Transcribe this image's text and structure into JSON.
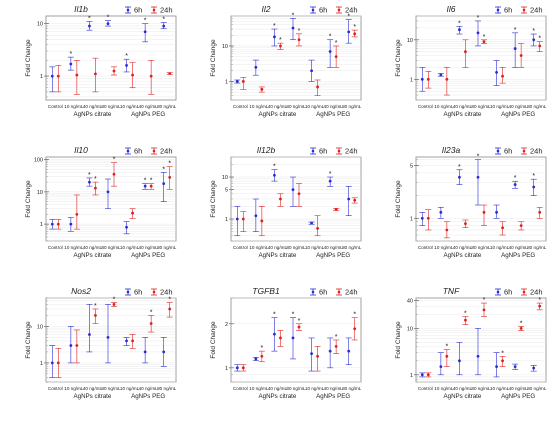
{
  "page": {
    "y_label": "Fold Change",
    "categories": [
      "Control",
      "10 ng/mL",
      "40 ng/mL",
      "80 ng/mL",
      "10 ng/mL",
      "40 ng/mL",
      "80 ng/mL"
    ],
    "groups": [
      "AgNPs citrate",
      "AgNPs PEG"
    ],
    "legend": [
      "6h",
      "24h"
    ],
    "colors": {
      "6h": "#2b2bd4",
      "24h": "#e02020",
      "frame": "#8a8a8a",
      "grid": "#e3e3e3"
    },
    "significance_marker": "*"
  },
  "chart_data": [
    {
      "type": "scatter",
      "gene": "Il1b",
      "yscale": "log",
      "ylim": [
        0.35,
        14
      ],
      "yticks": [
        1,
        10
      ],
      "series": [
        {
          "name": "6h",
          "mean": [
            1,
            1.7,
            9,
            10,
            1.6,
            7,
            9
          ],
          "low": [
            0.5,
            1.3,
            7.5,
            9,
            1.2,
            4.5,
            8
          ],
          "high": [
            1.5,
            2.3,
            11,
            11.5,
            2.1,
            10,
            10.5
          ],
          "sig": [
            false,
            true,
            true,
            true,
            true,
            true,
            true
          ]
        },
        {
          "name": "24h",
          "mean": [
            1,
            1.05,
            1.1,
            1.25,
            1.05,
            1,
            1.12
          ],
          "low": [
            0.5,
            0.45,
            0.5,
            1.05,
            0.6,
            0.45,
            1.08
          ],
          "high": [
            1.6,
            2,
            2.2,
            1.5,
            1.8,
            2,
            1.16
          ],
          "sig": [
            false,
            false,
            false,
            false,
            false,
            false,
            false
          ]
        }
      ]
    },
    {
      "type": "scatter",
      "gene": "Il2",
      "yscale": "log",
      "ylim": [
        0.3,
        70
      ],
      "yticks": [
        1,
        10
      ],
      "series": [
        {
          "name": "6h",
          "mean": [
            1,
            2.5,
            18,
            32,
            2,
            7,
            25
          ],
          "low": [
            0.9,
            1.5,
            10,
            15,
            1,
            2.5,
            12
          ],
          "high": [
            1.1,
            4,
            30,
            60,
            4,
            15,
            55
          ],
          "sig": [
            false,
            false,
            true,
            true,
            false,
            true,
            true
          ]
        },
        {
          "name": "24h",
          "mean": [
            1,
            0.6,
            10,
            15,
            0.7,
            5,
            22
          ],
          "low": [
            0.6,
            0.5,
            8,
            10,
            0.4,
            2.5,
            18
          ],
          "high": [
            1.3,
            0.7,
            12,
            22,
            1.1,
            10,
            28
          ],
          "sig": [
            false,
            false,
            true,
            true,
            false,
            true,
            true
          ]
        }
      ]
    },
    {
      "type": "scatter",
      "gene": "Il6",
      "yscale": "log",
      "ylim": [
        0.3,
        40
      ],
      "yticks": [
        1,
        10
      ],
      "series": [
        {
          "name": "6h",
          "mean": [
            1,
            1.3,
            18,
            15,
            1.5,
            6,
            10
          ],
          "low": [
            0.5,
            1.2,
            14,
            7,
            0.7,
            2,
            7
          ],
          "high": [
            2,
            1.4,
            22,
            30,
            3,
            15,
            14
          ],
          "sig": [
            false,
            false,
            true,
            true,
            false,
            true,
            true
          ]
        },
        {
          "name": "24h",
          "mean": [
            1,
            1,
            5,
            9,
            1.2,
            4,
            7
          ],
          "low": [
            0.6,
            0.4,
            2,
            8,
            0.8,
            2,
            5
          ],
          "high": [
            1.6,
            2,
            10,
            10,
            2,
            8,
            9
          ],
          "sig": [
            false,
            false,
            false,
            true,
            false,
            false,
            true
          ]
        }
      ]
    },
    {
      "type": "scatter",
      "gene": "Il10",
      "yscale": "log",
      "ylim": [
        0.3,
        120
      ],
      "yticks": [
        1,
        10,
        100
      ],
      "series": [
        {
          "name": "6h",
          "mean": [
            1,
            1,
            20,
            10,
            0.8,
            15,
            18
          ],
          "low": [
            0.7,
            0.6,
            15,
            3,
            0.5,
            12,
            5
          ],
          "high": [
            1.4,
            1.6,
            27,
            25,
            1.2,
            18,
            40
          ],
          "sig": [
            false,
            false,
            true,
            false,
            false,
            true,
            true
          ]
        },
        {
          "name": "24h",
          "mean": [
            1,
            2,
            13,
            35,
            2.2,
            15,
            28
          ],
          "low": [
            0.7,
            0.7,
            8,
            15,
            1.5,
            12,
            12
          ],
          "high": [
            1.4,
            8,
            20,
            80,
            3,
            18,
            60
          ],
          "sig": [
            false,
            false,
            true,
            true,
            false,
            true,
            true
          ]
        }
      ]
    },
    {
      "type": "scatter",
      "gene": "Il12b",
      "yscale": "log",
      "ylim": [
        0.3,
        30
      ],
      "yticks": [
        1,
        5,
        10
      ],
      "series": [
        {
          "name": "6h",
          "mean": [
            1,
            1.2,
            11,
            5,
            0.8,
            8,
            3
          ],
          "low": [
            0.4,
            0.5,
            8,
            2,
            0.75,
            6,
            1.2
          ],
          "high": [
            2,
            3,
            15,
            10,
            0.85,
            10,
            6
          ],
          "sig": [
            false,
            false,
            true,
            false,
            false,
            true,
            false
          ]
        },
        {
          "name": "24h",
          "mean": [
            1,
            0.9,
            3,
            4,
            0.6,
            1.7,
            2.8
          ],
          "low": [
            0.5,
            0.4,
            2,
            2,
            0.4,
            1.6,
            2.4
          ],
          "high": [
            1.5,
            2,
            4,
            7,
            1.2,
            1.8,
            3.2
          ],
          "sig": [
            false,
            false,
            false,
            false,
            false,
            false,
            false
          ]
        }
      ]
    },
    {
      "type": "scatter",
      "gene": "Il23a",
      "yscale": "log",
      "ylim": [
        0.5,
        6.5
      ],
      "yticks": [
        1,
        5
      ],
      "series": [
        {
          "name": "6h",
          "mean": [
            1,
            1.2,
            3.5,
            3.5,
            1.2,
            2.8,
            2.6
          ],
          "low": [
            0.8,
            1,
            2.8,
            1.5,
            1,
            2.5,
            2
          ],
          "high": [
            1.2,
            1.4,
            4.4,
            6,
            1.5,
            3.1,
            3.3
          ],
          "sig": [
            false,
            false,
            true,
            true,
            false,
            true,
            true
          ]
        },
        {
          "name": "24h",
          "mean": [
            1,
            0.7,
            0.85,
            1.2,
            0.75,
            0.8,
            1.2
          ],
          "low": [
            0.7,
            0.55,
            0.75,
            0.8,
            0.6,
            0.7,
            1
          ],
          "high": [
            1.3,
            0.9,
            0.95,
            1.5,
            0.9,
            0.9,
            1.4
          ],
          "sig": [
            false,
            false,
            false,
            false,
            false,
            false,
            false
          ]
        }
      ]
    },
    {
      "type": "scatter",
      "gene": "Nos2",
      "yscale": "log",
      "ylim": [
        0.3,
        60
      ],
      "yticks": [
        1,
        10
      ],
      "series": [
        {
          "name": "6h",
          "mean": [
            1,
            3,
            6,
            5,
            4,
            2,
            2
          ],
          "low": [
            0.4,
            1,
            2,
            1,
            3,
            1,
            0.8
          ],
          "high": [
            3,
            10,
            40,
            40,
            5,
            5,
            5
          ],
          "sig": [
            false,
            false,
            false,
            false,
            false,
            false,
            false
          ]
        },
        {
          "name": "24h",
          "mean": [
            1,
            3,
            20,
            40,
            4,
            12,
            30
          ],
          "low": [
            0.4,
            1,
            12,
            35,
            2.5,
            7,
            18
          ],
          "high": [
            2.5,
            8,
            30,
            45,
            6,
            20,
            45
          ],
          "sig": [
            false,
            false,
            true,
            true,
            false,
            true,
            true
          ]
        }
      ]
    },
    {
      "type": "scatter",
      "gene": "TGFB1",
      "yscale": "log",
      "ylim": [
        0.8,
        3
      ],
      "yticks": [
        1,
        2
      ],
      "series": [
        {
          "name": "6h",
          "mean": [
            1,
            1.15,
            1.7,
            1.6,
            1.25,
            1.3,
            1.3
          ],
          "low": [
            0.95,
            1.12,
            1.3,
            1.15,
            0.95,
            1,
            1.05
          ],
          "high": [
            1.05,
            1.18,
            2.2,
            2.2,
            1.6,
            1.6,
            1.6
          ],
          "sig": [
            false,
            false,
            true,
            true,
            false,
            false,
            false
          ]
        },
        {
          "name": "24h",
          "mean": [
            1,
            1.2,
            1.6,
            1.9,
            1.2,
            1.4,
            1.85
          ],
          "low": [
            0.95,
            1.1,
            1.4,
            1.8,
            0.95,
            1.25,
            1.55
          ],
          "high": [
            1.05,
            1.3,
            1.8,
            2,
            1.4,
            1.55,
            2.2
          ],
          "sig": [
            false,
            true,
            false,
            true,
            false,
            true,
            true
          ]
        }
      ]
    },
    {
      "type": "scatter",
      "gene": "TNF",
      "yscale": "log",
      "ylim": [
        0.7,
        45
      ],
      "yticks": [
        1,
        10,
        40
      ],
      "series": [
        {
          "name": "6h",
          "mean": [
            1,
            1.5,
            2,
            2.5,
            1.5,
            1.5,
            1.4
          ],
          "low": [
            0.9,
            1,
            1,
            1,
            0.9,
            1.3,
            1.2
          ],
          "high": [
            1.1,
            3,
            5,
            10,
            3,
            1.7,
            1.6
          ],
          "sig": [
            false,
            false,
            false,
            false,
            false,
            false,
            false
          ]
        },
        {
          "name": "24h",
          "mean": [
            1,
            2.5,
            15,
            25,
            2,
            10,
            30
          ],
          "low": [
            0.9,
            1.5,
            12,
            18,
            1.5,
            9,
            25
          ],
          "high": [
            1.1,
            3.5,
            18,
            35,
            2.5,
            11,
            35
          ],
          "sig": [
            false,
            true,
            true,
            true,
            true,
            true,
            true
          ]
        }
      ]
    }
  ]
}
